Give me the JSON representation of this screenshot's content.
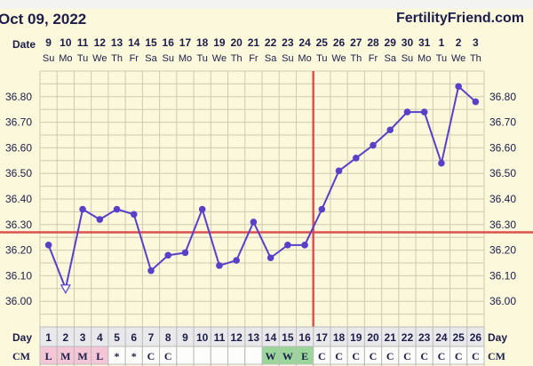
{
  "header": {
    "date": "Oct 09, 2022",
    "brand": "FertilityFriend.com"
  },
  "labels": {
    "date": "Date",
    "day": "Day",
    "cm": "CM"
  },
  "colors": {
    "line": "#5840c8",
    "coverline": "#e05050",
    "ovulation": "#e05050",
    "cm_pink": "#f4c6d6",
    "cm_green": "#9ad69a"
  },
  "chart_data": {
    "type": "line",
    "title": "",
    "dates": [
      "9",
      "10",
      "11",
      "12",
      "13",
      "14",
      "15",
      "16",
      "17",
      "18",
      "19",
      "20",
      "21",
      "22",
      "23",
      "24",
      "25",
      "26",
      "27",
      "28",
      "29",
      "30",
      "31",
      "1",
      "2",
      "3"
    ],
    "weekdays": [
      "Su",
      "Mo",
      "Tu",
      "We",
      "Th",
      "Fr",
      "Sa",
      "Su",
      "Mo",
      "Tu",
      "We",
      "Th",
      "Fr",
      "Sa",
      "Su",
      "Mo",
      "Tu",
      "We",
      "Th",
      "Fr",
      "Sa",
      "Su",
      "Mo",
      "Tu",
      "We",
      "Th"
    ],
    "days": [
      1,
      2,
      3,
      4,
      5,
      6,
      7,
      8,
      9,
      10,
      11,
      12,
      13,
      14,
      15,
      16,
      17,
      18,
      19,
      20,
      21,
      22,
      23,
      24,
      25,
      26
    ],
    "temps": [
      36.22,
      36.05,
      36.36,
      36.32,
      36.36,
      36.34,
      36.12,
      36.18,
      36.19,
      36.36,
      36.14,
      36.16,
      36.31,
      36.17,
      36.22,
      36.22,
      36.36,
      36.51,
      36.56,
      36.61,
      36.67,
      36.74,
      36.74,
      36.54,
      36.84,
      36.78
    ],
    "discarded_days": [
      2
    ],
    "cm": [
      "L",
      "M",
      "M",
      "L",
      "*",
      "*",
      "C",
      "C",
      "",
      "",
      "",
      "",
      "",
      "W",
      "W",
      "E",
      "C",
      "C",
      "C",
      "C",
      "C",
      "C",
      "C",
      "C",
      "C",
      "C"
    ],
    "y_ticks": [
      "36.80",
      "36.70",
      "36.60",
      "36.50",
      "36.40",
      "36.30",
      "36.20",
      "36.10",
      "36.00"
    ],
    "ylim": [
      35.9,
      36.9
    ],
    "coverline": 36.27,
    "ovulation_day": 16
  }
}
